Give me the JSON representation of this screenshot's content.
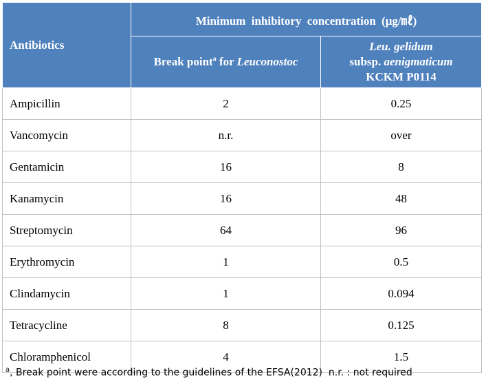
{
  "header": {
    "col1": "Antibiotics",
    "group": "Minimum inhibitory concentration (μg/㎖)",
    "col2": {
      "text": "Break point",
      "sup": "a",
      "mid": " for ",
      "italic": "Leuconostoc"
    },
    "col3": {
      "line1": "Leu. gelidum",
      "line2a": "subsp. ",
      "line2b": "aenigmaticum",
      "line3": "KCKM P0114"
    }
  },
  "table": {
    "rows": [
      [
        "Ampicillin",
        "2",
        "0.25"
      ],
      [
        "Vancomycin",
        "n.r.",
        "over"
      ],
      [
        "Gentamicin",
        "16",
        "8"
      ],
      [
        "Kanamycin",
        "16",
        "48"
      ],
      [
        "Streptomycin",
        "64",
        "96"
      ],
      [
        "Erythromycin",
        "1",
        "0.5"
      ],
      [
        "Clindamycin",
        "1",
        "0.094"
      ],
      [
        "Tetracycline",
        "8",
        "0.125"
      ],
      [
        "Chloramphenicol",
        "4",
        "1.5"
      ]
    ]
  },
  "footnote": {
    "sup": "a",
    "text": ", Break point were according to the guidelines of the EFSA(2012)  n.r. : not required"
  }
}
